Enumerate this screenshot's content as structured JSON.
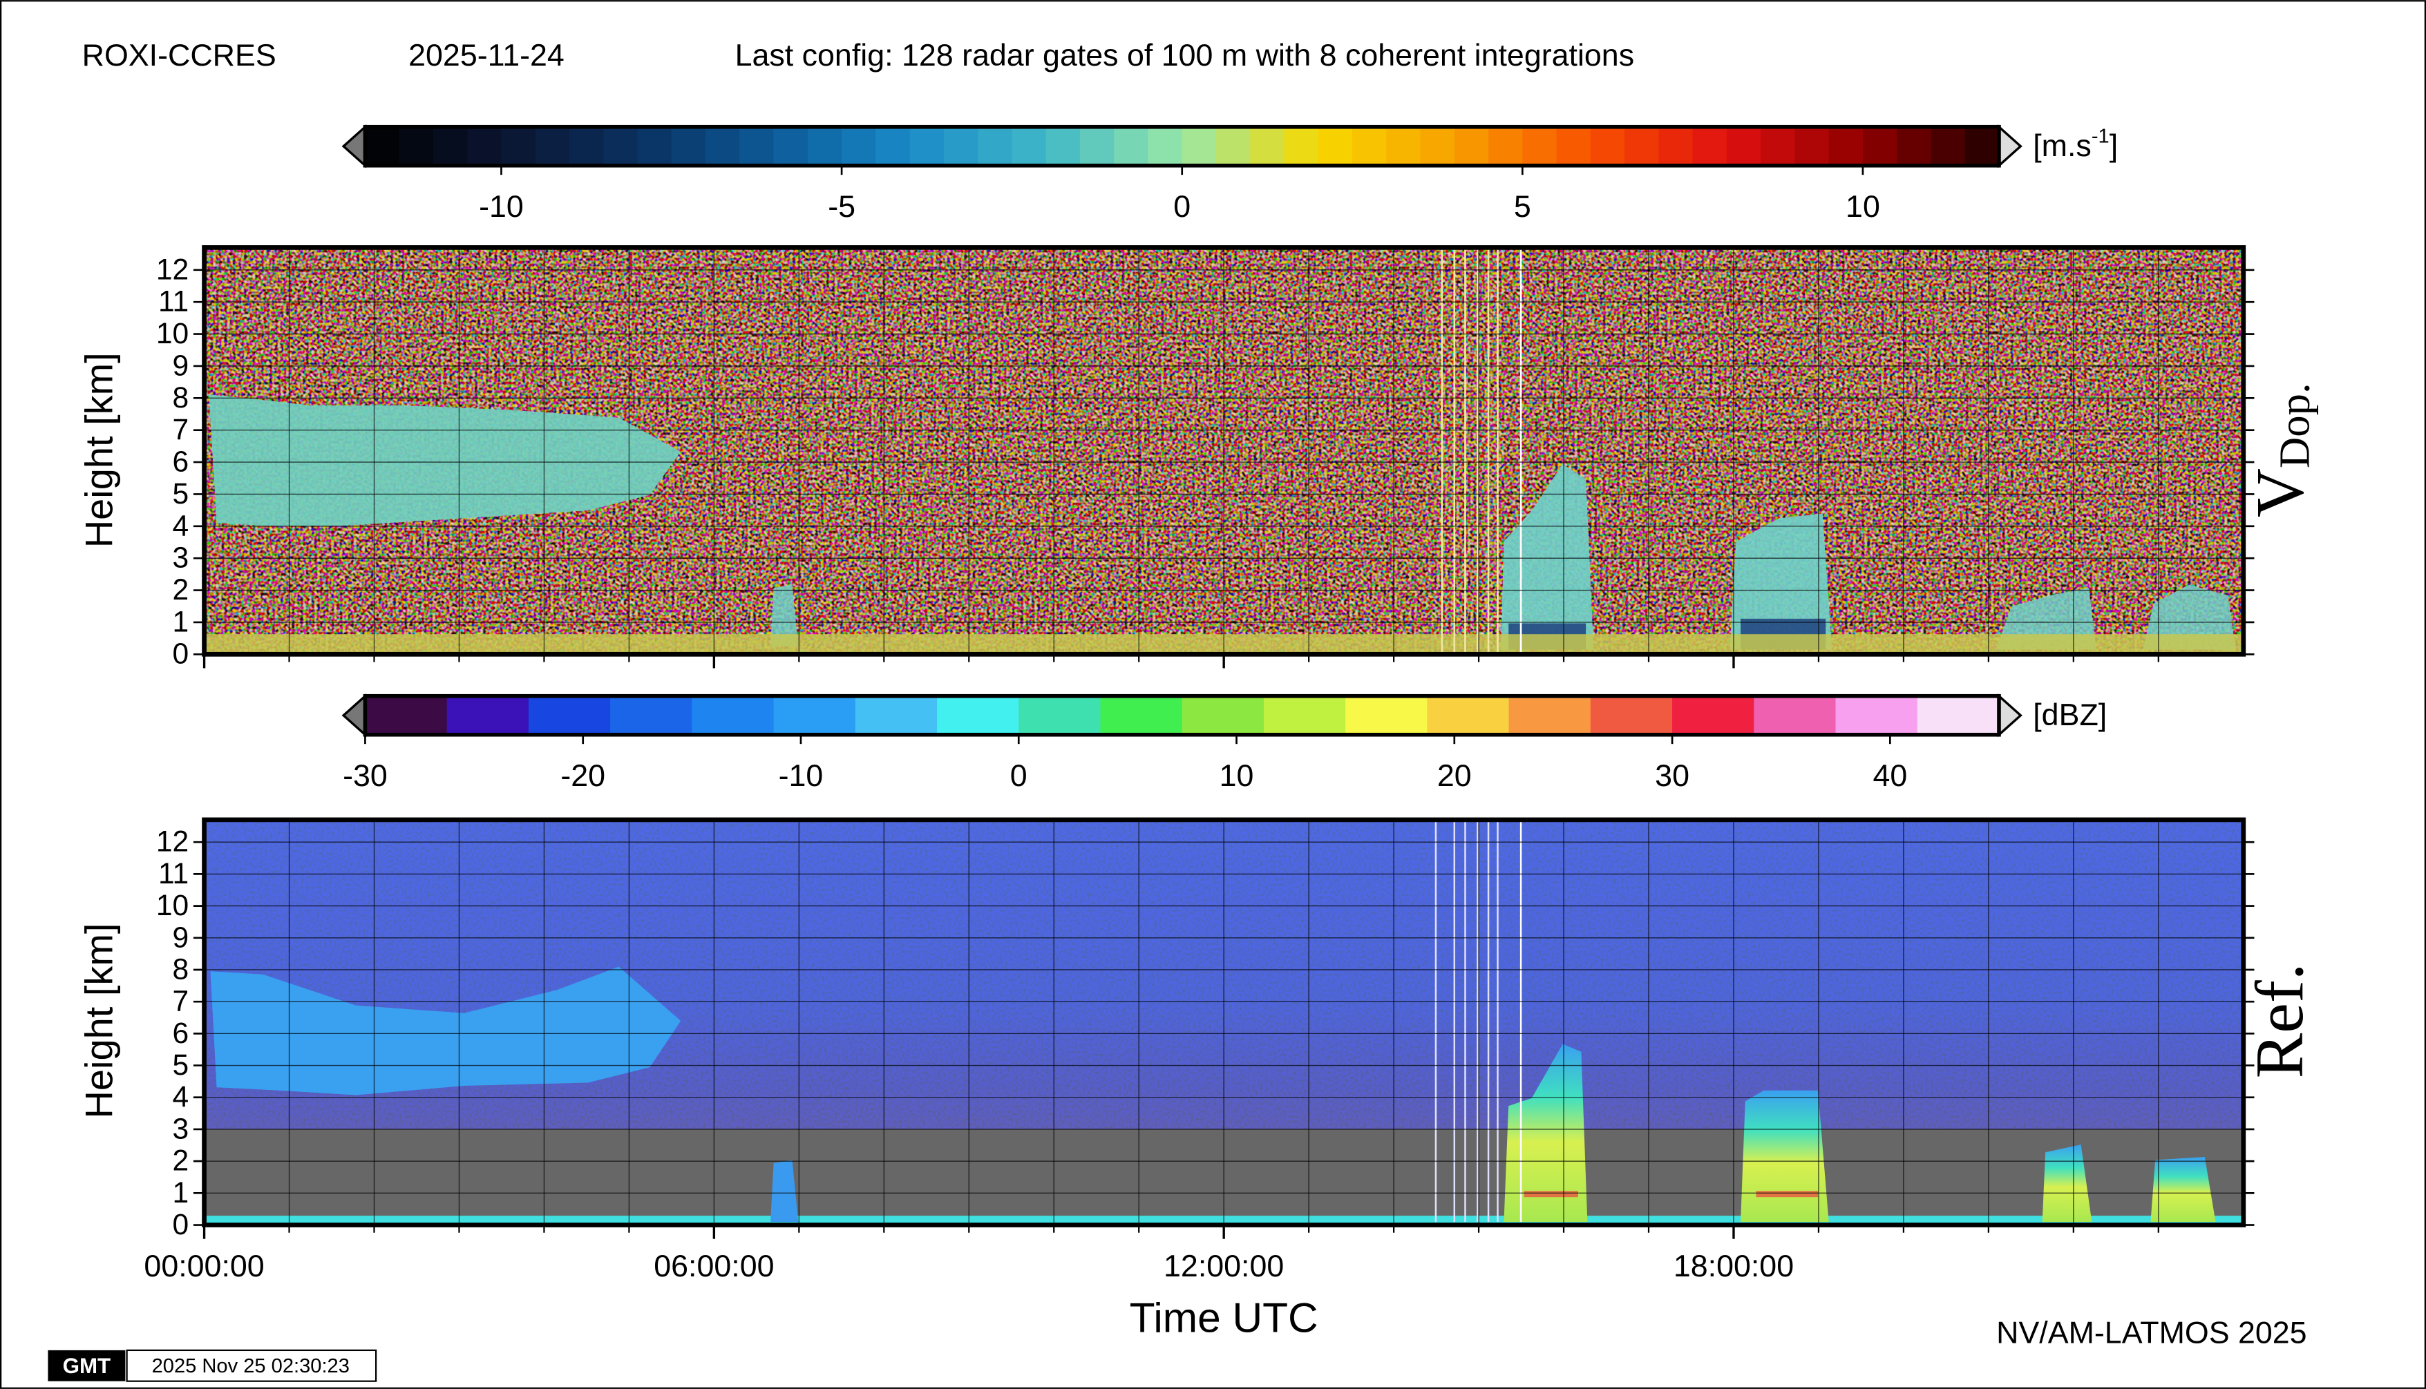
{
  "header": {
    "station": "ROXI-CCRES",
    "date": "2025-11-24",
    "config": "Last config: 128 radar gates of 100 m with 8 coherent integrations"
  },
  "footer": {
    "credit": "NV/AM-LATMOS 2025",
    "logo": "GMT",
    "timestamp": "2025 Nov 25 02:30:23"
  },
  "chart_data": [
    {
      "type": "heatmap",
      "label": "V",
      "label_sub": "Dop.",
      "ylabel": "Height [km]",
      "ylim": [
        0,
        12.7
      ],
      "yticks": [
        0,
        1,
        2,
        3,
        4,
        5,
        6,
        7,
        8,
        9,
        10,
        11,
        12
      ],
      "xlim": [
        0,
        24
      ],
      "xticks": [
        0,
        6,
        12,
        18
      ],
      "xminorticks": [
        1,
        2,
        3,
        4,
        5,
        6,
        7,
        8,
        9,
        10,
        11,
        12,
        13,
        14,
        15,
        16,
        17,
        18,
        19,
        20,
        21,
        22,
        23
      ],
      "grid": true,
      "colorbar": {
        "range": [
          -12,
          12
        ],
        "ticks": [
          -10,
          -5,
          0,
          5,
          10
        ],
        "unit": "[m.s",
        "unit_sup": "-1",
        "unit_end": "]",
        "levels": 48,
        "colors": [
          "#000000",
          "#0a1530",
          "#0a3060",
          "#0c5a98",
          "#1a8ac8",
          "#40b8c8",
          "#98e8a8",
          "#f8d800",
          "#f8a000",
          "#f85000",
          "#e01010",
          "#900000",
          "#200000"
        ]
      }
    },
    {
      "type": "heatmap",
      "label": "Ref.",
      "ylabel": "Height [km]",
      "xlabel": "Time UTC",
      "ylim": [
        0,
        12.7
      ],
      "yticks": [
        0,
        1,
        2,
        3,
        4,
        5,
        6,
        7,
        8,
        9,
        10,
        11,
        12
      ],
      "xlim": [
        0,
        24
      ],
      "xticks": [
        {
          "value": 0,
          "label": "00:00:00"
        },
        {
          "value": 6,
          "label": "06:00:00"
        },
        {
          "value": 12,
          "label": "12:00:00"
        },
        {
          "value": 18,
          "label": "18:00:00"
        }
      ],
      "xminorticks": [
        1,
        2,
        3,
        4,
        5,
        6,
        7,
        8,
        9,
        10,
        11,
        12,
        13,
        14,
        15,
        16,
        17,
        18,
        19,
        20,
        21,
        22,
        23
      ],
      "grid": true,
      "colorbar": {
        "range": [
          -30,
          45
        ],
        "ticks": [
          -30,
          -20,
          -10,
          0,
          10,
          20,
          30,
          40
        ],
        "unit": "[dBZ]",
        "colors": [
          "#3c0b45",
          "#3a12b8",
          "#1846e0",
          "#1b66e8",
          "#1d84f0",
          "#2a9df5",
          "#45c0f5",
          "#42f0f0",
          "#3ee0b0",
          "#40ee50",
          "#8ce840",
          "#c0f040",
          "#f8f848",
          "#f8d040",
          "#f89840",
          "#f05a40",
          "#f02040",
          "#f060b0",
          "#f8a0f0",
          "#f8e0f8"
        ]
      }
    }
  ]
}
